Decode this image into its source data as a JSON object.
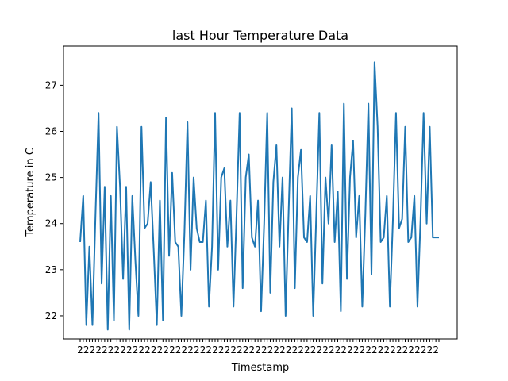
{
  "chart_data": {
    "type": "line",
    "title": "last Hour Temperature Data",
    "xlabel": "Timestamp",
    "ylabel": "Temperature in C",
    "ylim": [
      21.5,
      27.85
    ],
    "yticks": [
      22,
      23,
      24,
      25,
      26,
      27
    ],
    "x_tick_prefix": "2",
    "grid": false,
    "series": [
      {
        "color": "#1f77b4",
        "values": [
          23.6,
          24.6,
          21.8,
          23.5,
          21.8,
          24.2,
          26.4,
          22.7,
          24.8,
          21.7,
          24.6,
          21.9,
          26.1,
          24.8,
          22.8,
          24.8,
          21.7,
          24.6,
          23.2,
          22.0,
          26.1,
          23.9,
          24.0,
          24.9,
          23.4,
          21.8,
          24.5,
          21.9,
          26.3,
          23.3,
          25.1,
          23.6,
          23.5,
          22.0,
          23.8,
          26.2,
          23.0,
          25.0,
          23.9,
          23.6,
          23.6,
          24.5,
          22.2,
          23.5,
          26.4,
          23.0,
          25.0,
          25.2,
          23.5,
          24.5,
          22.2,
          24.2,
          26.4,
          22.6,
          25.0,
          25.5,
          23.7,
          23.5,
          24.5,
          22.1,
          24.0,
          26.4,
          22.5,
          24.9,
          25.7,
          23.5,
          25.0,
          22.0,
          24.3,
          26.5,
          22.6,
          25.0,
          25.6,
          23.7,
          23.6,
          24.6,
          22.0,
          24.2,
          26.4,
          22.7,
          25.0,
          24.0,
          25.7,
          23.6,
          24.7,
          22.1,
          26.6,
          22.8,
          25.0,
          25.8,
          23.7,
          24.6,
          22.2,
          24.2,
          26.6,
          22.9,
          27.5,
          26.1,
          23.6,
          23.7,
          24.6,
          22.2,
          24.1,
          26.4,
          23.9,
          24.1,
          26.1,
          23.6,
          23.7,
          24.6,
          22.2,
          24.1,
          26.4,
          24.0,
          26.1,
          23.7,
          23.7,
          23.7
        ]
      }
    ]
  }
}
